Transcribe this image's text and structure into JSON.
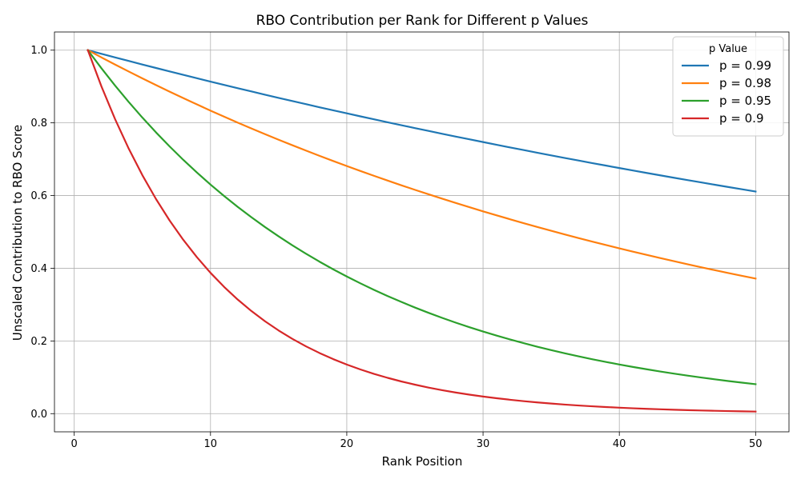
{
  "chart_data": {
    "type": "line",
    "title": "RBO Contribution per Rank for Different p Values",
    "xlabel": "Rank Position",
    "ylabel": "Unscaled Contribution to RBO Score",
    "xlim": [
      -1.45,
      52.45
    ],
    "ylim": [
      -0.05,
      1.05
    ],
    "xticks": [
      0,
      10,
      20,
      30,
      40,
      50
    ],
    "xtick_labels": [
      "0",
      "10",
      "20",
      "30",
      "40",
      "50"
    ],
    "yticks": [
      0.0,
      0.2,
      0.4,
      0.6,
      0.8,
      1.0
    ],
    "ytick_labels": [
      "0.0",
      "0.2",
      "0.4",
      "0.6",
      "0.8",
      "1.0"
    ],
    "grid": true,
    "legend_title": "p Value",
    "legend_position": "top-right",
    "x": [
      1,
      2,
      3,
      4,
      5,
      6,
      7,
      8,
      9,
      10,
      11,
      12,
      13,
      14,
      15,
      16,
      17,
      18,
      19,
      20,
      21,
      22,
      23,
      24,
      25,
      26,
      27,
      28,
      29,
      30,
      31,
      32,
      33,
      34,
      35,
      36,
      37,
      38,
      39,
      40,
      41,
      42,
      43,
      44,
      45,
      46,
      47,
      48,
      49,
      50
    ],
    "series": [
      {
        "name": "p = 0.99",
        "color": "#1f77b4",
        "values": [
          1.0,
          0.99,
          0.9801,
          0.9703,
          0.9606,
          0.951,
          0.9415,
          0.9321,
          0.9227,
          0.9135,
          0.9044,
          0.8953,
          0.8864,
          0.8775,
          0.8687,
          0.86,
          0.8515,
          0.8429,
          0.8345,
          0.8262,
          0.8179,
          0.8097,
          0.8016,
          0.7936,
          0.7857,
          0.7778,
          0.77,
          0.7623,
          0.7547,
          0.7472,
          0.7397,
          0.7323,
          0.725,
          0.7177,
          0.7106,
          0.7034,
          0.6964,
          0.6894,
          0.6826,
          0.6757,
          0.669,
          0.6623,
          0.6557,
          0.6491,
          0.6426,
          0.6362,
          0.6298,
          0.6235,
          0.6173,
          0.6111
        ]
      },
      {
        "name": "p = 0.98",
        "color": "#ff7f0e",
        "values": [
          1.0,
          0.98,
          0.9604,
          0.9412,
          0.9224,
          0.9039,
          0.8858,
          0.8681,
          0.8508,
          0.8337,
          0.8171,
          0.8007,
          0.7847,
          0.769,
          0.7536,
          0.7386,
          0.7238,
          0.7093,
          0.6951,
          0.6812,
          0.6676,
          0.6543,
          0.6412,
          0.6283,
          0.6158,
          0.6035,
          0.5914,
          0.5796,
          0.568,
          0.5566,
          0.5455,
          0.5346,
          0.5239,
          0.5134,
          0.5031,
          0.4931,
          0.4832,
          0.4735,
          0.4641,
          0.4548,
          0.4457,
          0.4368,
          0.428,
          0.4195,
          0.4111,
          0.4029,
          0.3948,
          0.3869,
          0.3792,
          0.3716
        ]
      },
      {
        "name": "p = 0.95",
        "color": "#2ca02c",
        "values": [
          1.0,
          0.95,
          0.9025,
          0.8574,
          0.8145,
          0.7738,
          0.7351,
          0.6983,
          0.6634,
          0.6302,
          0.5987,
          0.5688,
          0.5404,
          0.5133,
          0.4877,
          0.4633,
          0.4401,
          0.4181,
          0.3972,
          0.3774,
          0.3585,
          0.3406,
          0.3235,
          0.3074,
          0.292,
          0.2774,
          0.2635,
          0.2503,
          0.2378,
          0.2259,
          0.2146,
          0.2039,
          0.1937,
          0.184,
          0.1748,
          0.1661,
          0.1578,
          0.1499,
          0.1424,
          0.1353,
          0.1285,
          0.1221,
          0.116,
          0.1102,
          0.1047,
          0.0994,
          0.0945,
          0.0897,
          0.0853,
          0.081
        ]
      },
      {
        "name": "p = 0.9",
        "color": "#d62728",
        "values": [
          1.0,
          0.9,
          0.81,
          0.729,
          0.6561,
          0.5905,
          0.5314,
          0.4783,
          0.4305,
          0.3874,
          0.3487,
          0.3138,
          0.2824,
          0.2542,
          0.2288,
          0.2059,
          0.1853,
          0.1668,
          0.1501,
          0.1351,
          0.1216,
          0.1094,
          0.0985,
          0.0886,
          0.0798,
          0.0718,
          0.0646,
          0.0581,
          0.0523,
          0.0471,
          0.0424,
          0.0382,
          0.0343,
          0.0309,
          0.0278,
          0.025,
          0.0225,
          0.0203,
          0.0182,
          0.0164,
          0.0148,
          0.0133,
          0.012,
          0.0108,
          0.0097,
          0.0087,
          0.0079,
          0.0071,
          0.0064,
          0.0057
        ]
      }
    ]
  }
}
